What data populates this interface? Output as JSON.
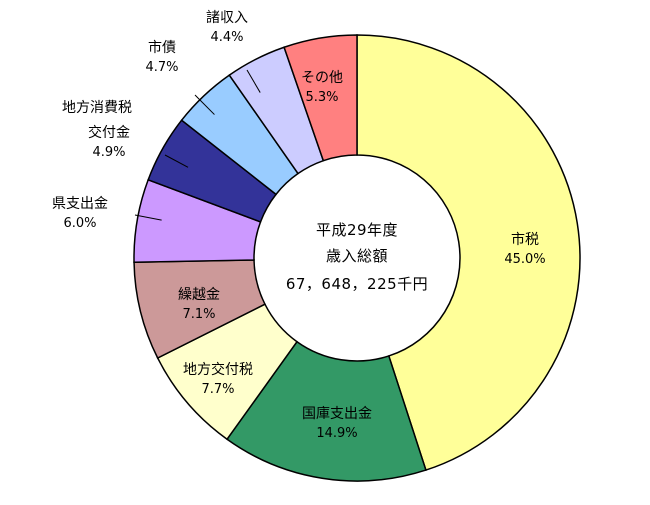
{
  "chart_data": {
    "type": "pie",
    "variant": "donut",
    "center_text": [
      "平成29年度",
      "歳入総額",
      "67，648，225千円"
    ],
    "slices": [
      {
        "label": "市税",
        "value": 45.0,
        "display": "45.0%",
        "color": "#ffff99"
      },
      {
        "label": "国庫支出金",
        "value": 14.9,
        "display": "14.9%",
        "color": "#339966"
      },
      {
        "label": "地方交付税",
        "value": 7.7,
        "display": "7.7%",
        "color": "#ffffcc"
      },
      {
        "label": "繰越金",
        "value": 7.1,
        "display": "7.1%",
        "color": "#cc9999"
      },
      {
        "label": "県支出金",
        "value": 6.0,
        "display": "6.0%",
        "color": "#cc99ff"
      },
      {
        "label": "地方消費税\n交付金",
        "value": 4.9,
        "display": "4.9%",
        "color": "#333399"
      },
      {
        "label": "市債",
        "value": 4.7,
        "display": "4.7%",
        "color": "#99ccff"
      },
      {
        "label": "諸収入",
        "value": 4.4,
        "display": "4.4%",
        "color": "#ccccff"
      },
      {
        "label": "その他",
        "value": 5.3,
        "display": "5.3%",
        "color": "#ff8080"
      }
    ]
  }
}
